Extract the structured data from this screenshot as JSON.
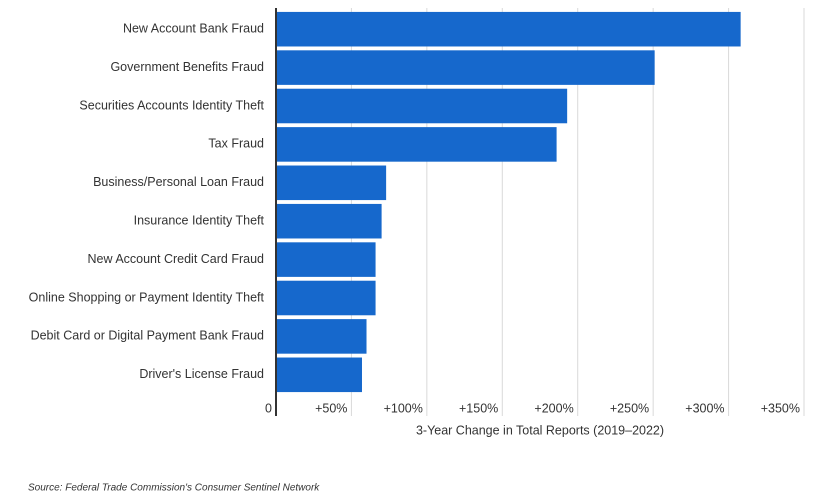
{
  "chart_data": {
    "type": "bar",
    "orientation": "horizontal",
    "categories": [
      "New Account Bank Fraud",
      "Government Benefits Fraud",
      "Securities Accounts Identity Theft",
      "Tax Fraud",
      "Business/Personal Loan Fraud",
      "Insurance Identity Theft",
      "New Account Credit Card Fraud",
      "Online Shopping or Payment Identity Theft",
      "Debit Card or Digital Payment Bank Fraud",
      "Driver's License Fraud"
    ],
    "values": [
      308,
      251,
      193,
      186,
      73,
      70,
      66,
      66,
      60,
      57
    ],
    "color": "#1668cc",
    "xlabel": "3-Year Change in Total Reports (2019–2022)",
    "xlim": [
      0,
      350
    ],
    "xticks": [
      0,
      {
        "value": 50,
        "label": "+50%"
      },
      {
        "value": 100,
        "label": "+100%"
      },
      {
        "value": 150,
        "label": "+150%"
      },
      {
        "value": 200,
        "label": "+200%"
      },
      {
        "value": 250,
        "label": "+250%"
      },
      {
        "value": 300,
        "label": "+300%"
      },
      {
        "value": 350,
        "label": "+350%"
      }
    ],
    "grid": true,
    "source": "Source: Federal Trade Commission's Consumer Sentinel Network"
  }
}
